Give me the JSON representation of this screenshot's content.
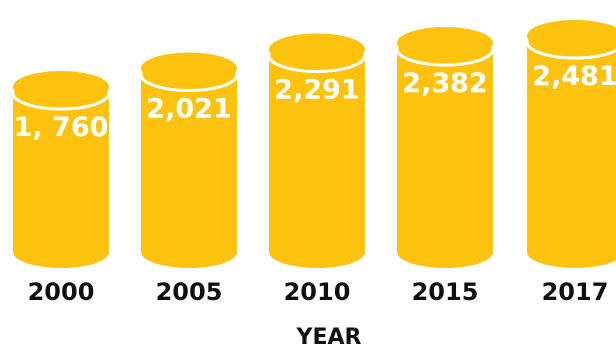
{
  "chart_data": {
    "type": "bar",
    "style": "cylinder",
    "categories": [
      "2000",
      "2005",
      "2010",
      "2015",
      "2017"
    ],
    "values": [
      1760,
      2021,
      2291,
      2382,
      2481
    ],
    "value_labels": [
      "1, 760",
      "2,021",
      "2,291",
      "2,382",
      "2,481"
    ],
    "title": "",
    "xlabel": "YEAR",
    "ylabel": "",
    "grid": false,
    "legend": "none"
  },
  "colors": {
    "bar": "#fcc20e",
    "bar_top": "#fcc20e",
    "rim": "#ffffff",
    "value_text": "#ffffff",
    "axis_text": "#111111"
  }
}
